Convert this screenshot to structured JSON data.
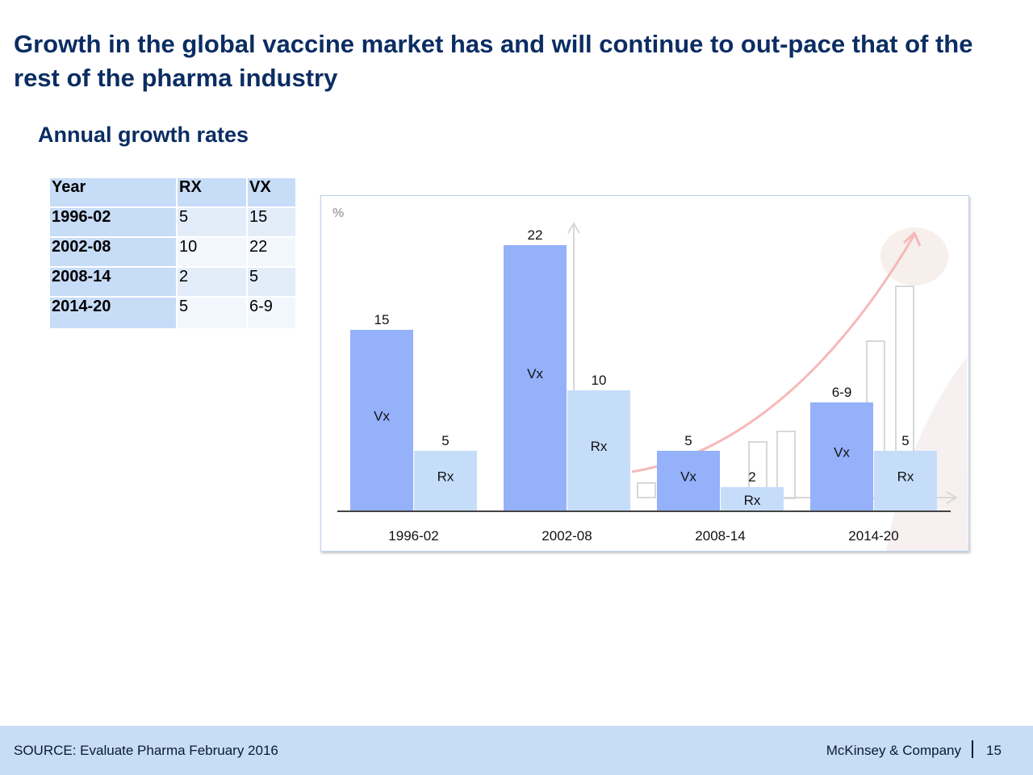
{
  "title": "Growth in the global vaccine market has and will continue to out-pace that of the rest of the pharma industry",
  "subtitle": "Annual growth rates",
  "table": {
    "headers": [
      "Year",
      "RX",
      "VX"
    ],
    "rows": [
      {
        "year": "1996-02",
        "rx": "5",
        "vx": "15"
      },
      {
        "year": "2002-08",
        "rx": "10",
        "vx": "22"
      },
      {
        "year": "2008-14",
        "rx": "2",
        "vx": "5"
      },
      {
        "year": "2014-20",
        "rx": "5",
        "vx": "6-9"
      }
    ]
  },
  "chart_data": {
    "type": "bar",
    "unit_label": "%",
    "categories": [
      "1996-02",
      "2002-08",
      "2008-14",
      "2014-20"
    ],
    "series": [
      {
        "name": "Vx",
        "values": [
          15,
          22,
          5,
          9
        ],
        "labels": [
          "15",
          "22",
          "5",
          "6-9"
        ],
        "color": "#94b1fa"
      },
      {
        "name": "Rx",
        "values": [
          5,
          10,
          2,
          5
        ],
        "labels": [
          "5",
          "10",
          "2",
          "5"
        ],
        "color": "#c6ddfa"
      }
    ],
    "ylim": [
      0,
      22
    ],
    "grid": false
  },
  "footer": {
    "source": "SOURCE: Evaluate Pharma February 2016",
    "brand": "McKinsey & Company",
    "page": "15"
  },
  "colors": {
    "title": "#0b2d63",
    "header_fill": "#c7dcf7",
    "footer_fill": "#c7dcf7"
  }
}
